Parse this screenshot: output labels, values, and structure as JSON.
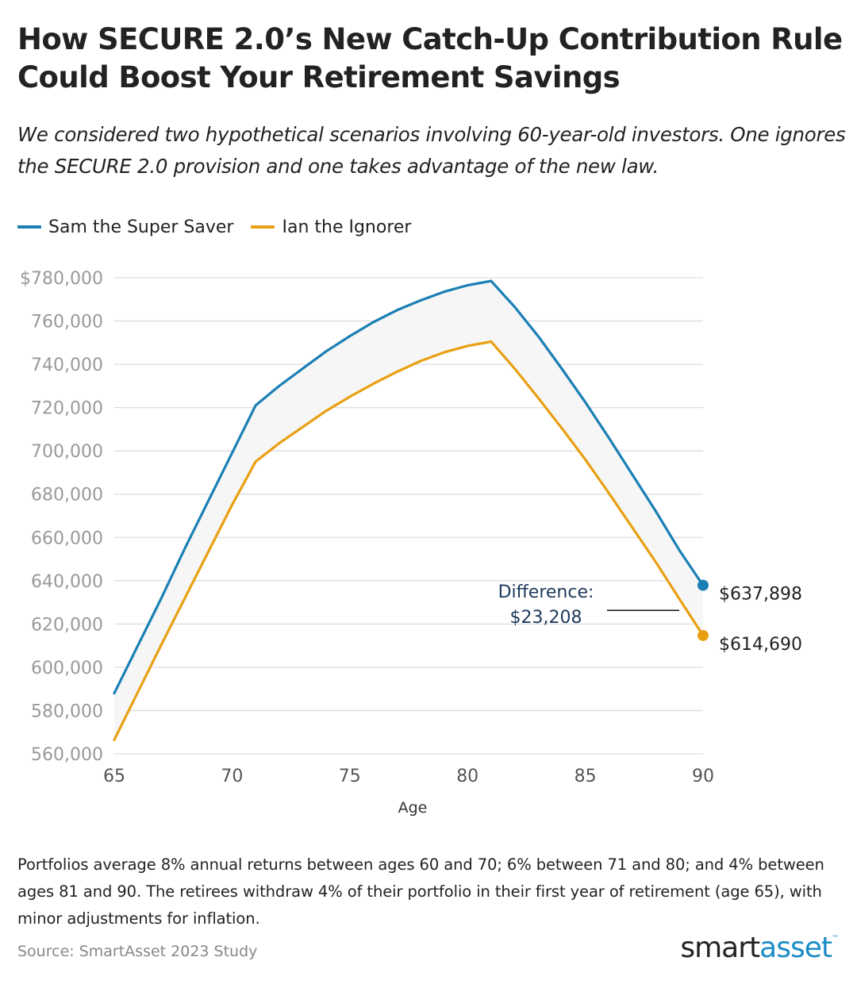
{
  "title": "How SECURE 2.0’s New Catch-Up Contribution Rule Could Boost Your Retirement Savings",
  "subtitle": "We considered two hypothetical scenarios involving 60-year-old investors. One ignores the SECURE 2.0 provision and one takes advantage of the new law.",
  "legend": [
    {
      "label": "Sam the Super Saver",
      "color": "#1a7fb4"
    },
    {
      "label": "Ian the Ignorer",
      "color": "#e8a012"
    }
  ],
  "chart_data": {
    "type": "line",
    "xlabel": "Age",
    "ylabel": "",
    "xlim": [
      65,
      90
    ],
    "ylim": [
      560000,
      780000
    ],
    "xticks": [
      65,
      70,
      75,
      80,
      85,
      90
    ],
    "yticks": [
      560000,
      580000,
      600000,
      620000,
      640000,
      660000,
      680000,
      700000,
      720000,
      740000,
      760000,
      780000
    ],
    "ytick_labels": [
      "560,000",
      "580,000",
      "600,000",
      "620,000",
      "640,000",
      "660,000",
      "680,000",
      "700,000",
      "720,000",
      "740,000",
      "760,000",
      "$780,000"
    ],
    "grid": "horizontal",
    "legend_position": "top-left",
    "fill_between": true,
    "series": [
      {
        "name": "Sam the Super Saver",
        "color": "#1a7fb4",
        "x": [
          65,
          66,
          67,
          68,
          69,
          70,
          71,
          72,
          73,
          74,
          75,
          76,
          77,
          78,
          79,
          80,
          81,
          82,
          83,
          84,
          85,
          86,
          87,
          88,
          89,
          90
        ],
        "y": [
          588000,
          610000,
          632000,
          655000,
          677000,
          699000,
          721000,
          730000,
          738000,
          746000,
          753000,
          759500,
          765000,
          769500,
          773500,
          776500,
          778500,
          766500,
          753000,
          738000,
          722500,
          706000,
          689000,
          672000,
          654000,
          637898
        ]
      },
      {
        "name": "Ian the Ignorer",
        "color": "#e8a012",
        "x": [
          65,
          66,
          67,
          68,
          69,
          70,
          71,
          72,
          73,
          74,
          75,
          76,
          77,
          78,
          79,
          80,
          81,
          82,
          83,
          84,
          85,
          86,
          87,
          88,
          89,
          90
        ],
        "y": [
          566500,
          588500,
          610500,
          632000,
          653500,
          675000,
          695000,
          703500,
          711000,
          718500,
          725000,
          731000,
          736500,
          741500,
          745500,
          748500,
          750500,
          738000,
          724500,
          710500,
          696000,
          680500,
          664500,
          648500,
          631500,
          614690
        ]
      }
    ],
    "end_labels": [
      "$637,898",
      "$614,690"
    ],
    "annotation": {
      "line1": "Difference:",
      "line2": "$23,208"
    }
  },
  "footnote": "Portfolios average 8% annual returns between ages 60 and 70; 6% between 71 and 80; and 4% between ages 81 and 90. The retirees withdraw 4% of their portfolio in their first year of retirement (age 65), with minor adjustments for inflation.",
  "source": "Source: SmartAsset 2023 Study",
  "logo": {
    "part1": "smart",
    "part2": "asset",
    "tm": "™"
  }
}
